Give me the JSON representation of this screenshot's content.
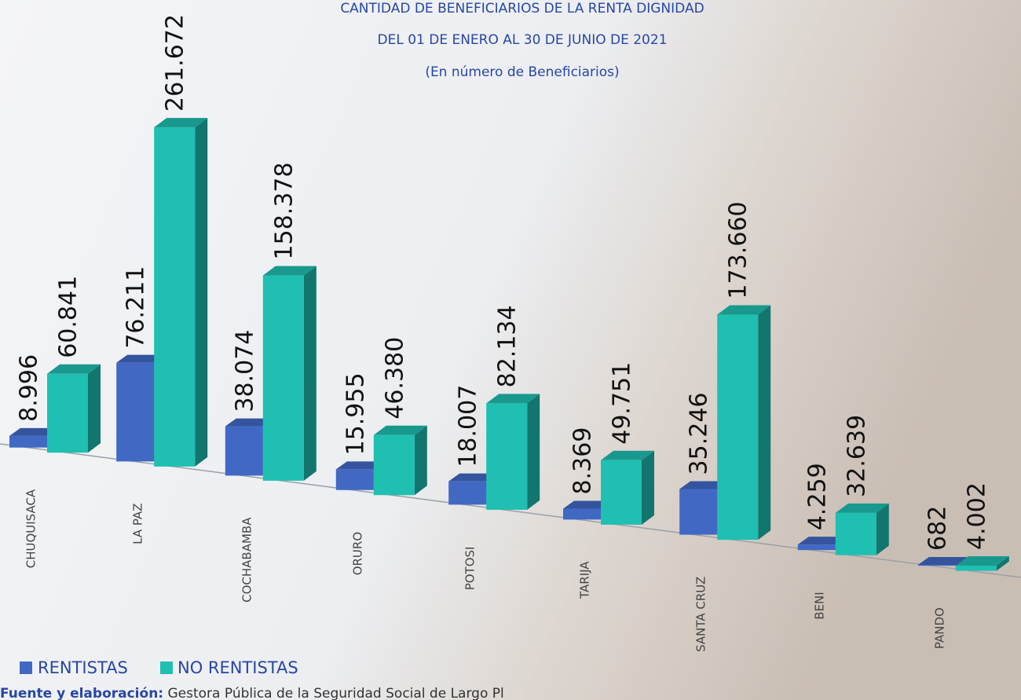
{
  "chart_data": {
    "type": "bar3d",
    "title": "CANTIDAD DE BENEFICIARIOS DE LA RENTA DIGNIDAD",
    "subtitle": "DEL 01 DE ENERO AL 30 DE JUNIO DE 2021",
    "unit_note": "(En número de Beneficiarios)",
    "categories": [
      "CHUQUISACA",
      "LA PAZ",
      "COCHABAMBA",
      "ORURO",
      "POTOSI",
      "TARIJA",
      "SANTA CRUZ",
      "BENI",
      "PANDO"
    ],
    "series": [
      {
        "name": "RENTISTAS",
        "color": "#4169c4",
        "values": [
          8996,
          76211,
          38074,
          15955,
          18007,
          8369,
          35246,
          4259,
          682
        ],
        "value_labels": [
          "8.996",
          "76.211",
          "38.074",
          "15.955",
          "18.007",
          "8.369",
          "35.246",
          "4.259",
          "682"
        ]
      },
      {
        "name": "NO RENTISTAS",
        "color": "#1fbfb1",
        "values": [
          60841,
          261672,
          158378,
          46380,
          82134,
          49751,
          173660,
          32639,
          4002
        ],
        "value_labels": [
          "60.841",
          "261.672",
          "158.378",
          "46.380",
          "82.134",
          "49.751",
          "173.660",
          "32.639",
          "4.002"
        ]
      }
    ],
    "source_label": "Fuente y elaboración:",
    "source": "Gestora Pública de la Seguridad Social de Largo Pl"
  }
}
